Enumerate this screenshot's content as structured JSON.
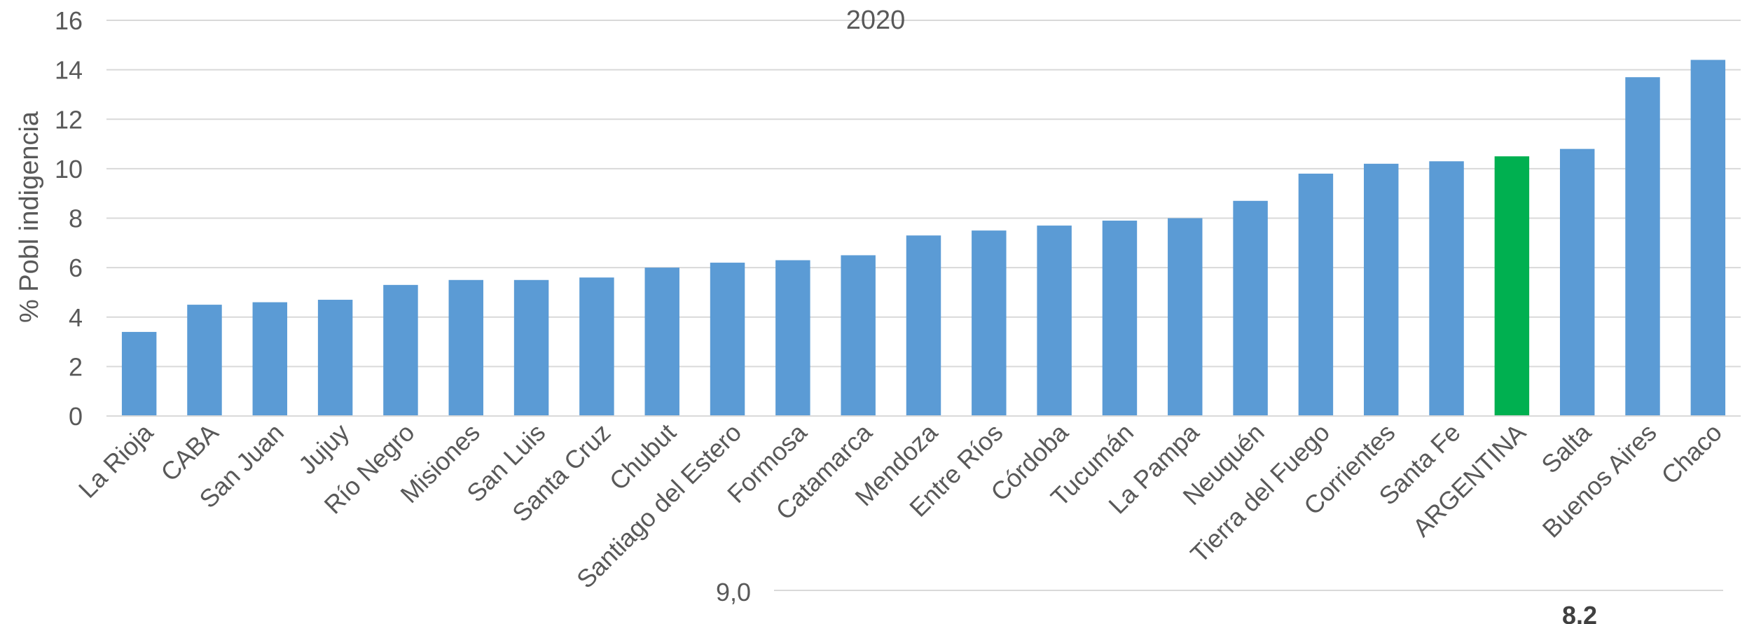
{
  "chart_data": {
    "type": "bar",
    "title": "2020",
    "ylabel": "% Pobl indigencia",
    "xlabel": "",
    "ylim": [
      0,
      16
    ],
    "yticks": [
      0,
      2,
      4,
      6,
      8,
      10,
      12,
      14,
      16
    ],
    "grid": true,
    "categories": [
      "La Rioja",
      "CABA",
      "San Juan",
      "Jujuy",
      "Río Negro",
      "Misiones",
      "San Luis",
      "Santa Cruz",
      "Chubut",
      "Santiago del Estero",
      "Formosa",
      "Catamarca",
      "Mendoza",
      "Entre Ríos",
      "Córdoba",
      "Tucumán",
      "La Pampa",
      "Neuquén",
      "Tierra del Fuego",
      "Corrientes",
      "Santa Fe",
      "ARGENTINA",
      "Salta",
      "Buenos Aires",
      "Chaco"
    ],
    "values": [
      3.4,
      4.5,
      4.6,
      4.7,
      5.3,
      5.5,
      5.5,
      5.6,
      6.0,
      6.2,
      6.3,
      6.5,
      7.3,
      7.5,
      7.7,
      7.9,
      8.0,
      8.7,
      9.8,
      10.2,
      10.3,
      10.5,
      10.8,
      13.7,
      14.4
    ],
    "highlight_category": "ARGENTINA",
    "bar_color": "#5b9bd5",
    "highlight_color": "#00b050",
    "grid_color": "#d9d9d9"
  },
  "cropped_fragments": {
    "left_tick": "9,0",
    "right_value": "8.2"
  }
}
